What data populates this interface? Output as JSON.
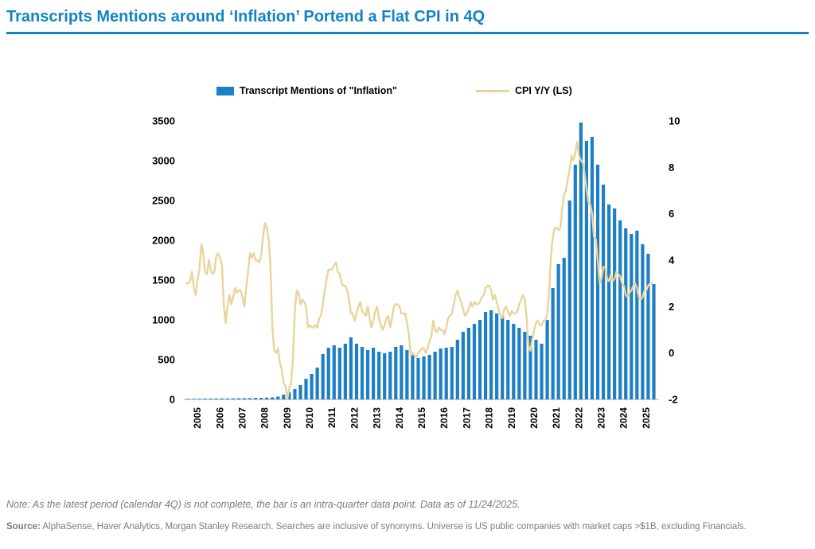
{
  "header": {
    "title": "Transcripts Mentions around ‘Inflation’ Portend a Flat CPI in 4Q"
  },
  "footer": {
    "note": "Note: As the latest period (calendar 4Q) is not complete, the bar is an intra-quarter data point. Data as of 11/24/2025.",
    "source_label": "Source:",
    "source_text": " AlphaSense, Haver Analytics, Morgan Stanley Research. Searches are inclusive of synonyms. Universe is US public companies with market caps >$1B, excluding Financials."
  },
  "colors": {
    "accent_blue": "#1283c6",
    "bar_blue": "#1d7fc4",
    "line_tan": "#e9d49a",
    "text_gray": "#7b7b7b"
  },
  "chart_data": {
    "type": "bar",
    "title": "",
    "xlabel": "",
    "ylabel": "",
    "legend": [
      {
        "label": "Transcript Mentions of \"Inflation\"",
        "series_type": "bar",
        "color": "#1d7fc4"
      },
      {
        "label": "CPI Y/Y (LS)",
        "series_type": "line",
        "color": "#e9d49a"
      }
    ],
    "legend_position": "top",
    "grid": false,
    "left_axis": {
      "min": 0,
      "max": 3500,
      "ticks": [
        0,
        500,
        1000,
        1500,
        2000,
        2500,
        3000,
        3500
      ]
    },
    "right_axis": {
      "min": -2,
      "max": 10,
      "ticks": [
        -2,
        0,
        2,
        4,
        6,
        8,
        10
      ]
    },
    "x_axis": {
      "year_labels": [
        "2005",
        "2006",
        "2007",
        "2008",
        "2009",
        "2010",
        "2011",
        "2012",
        "2013",
        "2014",
        "2015",
        "2016",
        "2017",
        "2018",
        "2019",
        "2020",
        "2021",
        "2022",
        "2023",
        "2024",
        "2025"
      ]
    },
    "series": [
      {
        "name": "Transcript Mentions of \"Inflation\"",
        "type": "bar",
        "axis": "left",
        "freq": "quarterly",
        "start": "2005Q1",
        "values": [
          8,
          8,
          9,
          10,
          10,
          11,
          12,
          12,
          13,
          14,
          15,
          16,
          18,
          20,
          22,
          26,
          35,
          60,
          90,
          130,
          180,
          260,
          320,
          400,
          570,
          650,
          680,
          650,
          700,
          780,
          700,
          660,
          620,
          650,
          600,
          580,
          600,
          660,
          680,
          620,
          560,
          520,
          540,
          560,
          600,
          640,
          650,
          660,
          750,
          850,
          900,
          950,
          1000,
          1100,
          1120,
          1080,
          1050,
          1000,
          950,
          900,
          850,
          800,
          750,
          700,
          1000,
          1400,
          1700,
          1780,
          2500,
          2950,
          3480,
          3250,
          3300,
          2950,
          2700,
          2450,
          2400,
          2250,
          2150,
          2080,
          2120,
          1950,
          1830,
          1450
        ]
      },
      {
        "name": "CPI Y/Y (LS)",
        "type": "line",
        "axis": "right",
        "freq": "monthly",
        "start": "2005-01",
        "values": [
          3.0,
          3.0,
          3.1,
          3.5,
          2.8,
          2.5,
          3.2,
          3.6,
          4.7,
          4.3,
          3.5,
          3.4,
          4.0,
          3.6,
          3.4,
          3.5,
          4.2,
          4.3,
          4.1,
          3.8,
          2.1,
          1.3,
          2.0,
          2.5,
          2.1,
          2.4,
          2.8,
          2.6,
          2.7,
          2.7,
          2.4,
          2.0,
          2.8,
          3.5,
          4.3,
          4.1,
          4.3,
          4.0,
          4.0,
          3.9,
          4.2,
          5.0,
          5.6,
          5.4,
          4.9,
          3.7,
          1.1,
          0.1,
          0.0,
          0.2,
          -0.4,
          -0.7,
          -1.3,
          -1.4,
          -2.1,
          -1.5,
          -1.3,
          -0.2,
          1.8,
          2.7,
          2.6,
          2.1,
          2.3,
          2.2,
          2.0,
          1.1,
          1.2,
          1.1,
          1.1,
          1.2,
          1.1,
          1.5,
          1.6,
          2.1,
          2.7,
          3.2,
          3.6,
          3.6,
          3.6,
          3.8,
          3.9,
          3.5,
          3.4,
          3.0,
          2.9,
          2.9,
          2.7,
          2.3,
          1.7,
          1.7,
          1.4,
          1.7,
          2.0,
          2.2,
          1.8,
          1.7,
          1.6,
          2.0,
          1.5,
          1.1,
          1.4,
          1.8,
          2.0,
          1.5,
          1.2,
          1.0,
          1.2,
          1.5,
          1.6,
          1.1,
          1.5,
          2.0,
          2.1,
          2.1,
          2.0,
          1.7,
          1.7,
          1.7,
          1.3,
          0.8,
          -0.1,
          0.0,
          -0.1,
          -0.2,
          0.0,
          0.1,
          0.2,
          0.2,
          0.0,
          0.2,
          0.5,
          0.7,
          1.4,
          1.0,
          0.9,
          1.1,
          1.0,
          1.0,
          0.8,
          1.1,
          1.5,
          1.6,
          1.7,
          2.1,
          2.5,
          2.7,
          2.4,
          2.2,
          1.9,
          1.6,
          1.7,
          1.9,
          2.2,
          2.0,
          2.2,
          2.1,
          2.1,
          2.2,
          2.4,
          2.5,
          2.8,
          2.9,
          2.9,
          2.7,
          2.3,
          2.5,
          2.2,
          1.9,
          1.6,
          1.5,
          1.9,
          2.0,
          1.8,
          1.6,
          1.8,
          1.7,
          1.7,
          1.8,
          2.1,
          2.3,
          2.5,
          2.3,
          1.5,
          0.3,
          0.1,
          0.6,
          1.0,
          1.3,
          1.4,
          1.2,
          1.2,
          1.4,
          1.4,
          1.7,
          2.6,
          4.2,
          5.0,
          5.4,
          5.4,
          5.3,
          5.4,
          6.2,
          6.8,
          7.0,
          7.5,
          7.9,
          8.5,
          8.3,
          8.6,
          9.1,
          8.5,
          8.3,
          8.2,
          7.7,
          7.1,
          6.5,
          6.4,
          6.0,
          5.0,
          4.9,
          4.0,
          3.0,
          3.2,
          3.7,
          3.7,
          3.2,
          3.1,
          3.4,
          3.1,
          3.2,
          3.5,
          3.4,
          3.3,
          3.0,
          2.9,
          2.5,
          2.4,
          2.6,
          2.7,
          2.9,
          3.0,
          2.8,
          2.4,
          2.3,
          2.4,
          2.7,
          2.7,
          2.9,
          3.0,
          3.0
        ]
      }
    ]
  }
}
